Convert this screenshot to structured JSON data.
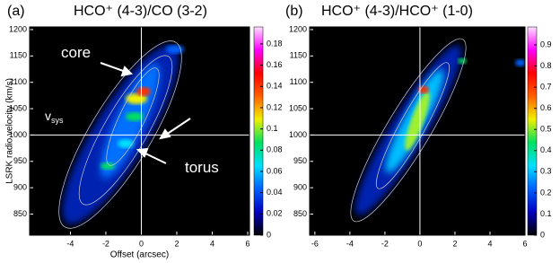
{
  "chart_data": [
    {
      "type": "heatmap",
      "panel_label": "(a)",
      "title": "HCO⁺ (4-3)/CO (3-2)",
      "xlabel": "Offset (arcsec)",
      "ylabel": "LSRK radio velocity (km/s)",
      "xlim": [
        -6.3,
        6.1
      ],
      "ylim": [
        810,
        1205
      ],
      "xticks": [
        -4,
        -2,
        0,
        2,
        4,
        6
      ],
      "yticks": [
        850,
        900,
        950,
        1000,
        1050,
        1100,
        1150,
        1200
      ],
      "clim": [
        0,
        0.196
      ],
      "cticks": [
        0,
        0.02,
        0.04,
        0.06,
        0.08,
        0.1,
        0.12,
        0.14,
        0.16,
        0.18
      ],
      "colormap": [
        "#000000",
        "#0000c0",
        "#0060ff",
        "#00e0ff",
        "#00e060",
        "#f0f000",
        "#ff6000",
        "#ff0000",
        "#ff00ff",
        "#ffe0ff"
      ],
      "reference_lines": {
        "x": 0,
        "y": 1000
      },
      "annotations": [
        {
          "text": "core"
        },
        {
          "text": "torus"
        },
        {
          "text": "v",
          "subscript": "sys"
        }
      ]
    },
    {
      "type": "heatmap",
      "panel_label": "(b)",
      "title": "HCO⁺ (4-3)/HCO⁺ (1-0)",
      "xlim": [
        -6.3,
        6.0
      ],
      "ylim": [
        810,
        1205
      ],
      "xticks": [
        -6,
        -4,
        -2,
        0,
        2,
        4,
        6
      ],
      "yticks": [
        850,
        900,
        950,
        1000,
        1050,
        1100,
        1150,
        1200
      ],
      "clim": [
        0,
        0.985
      ],
      "cticks": [
        0,
        0.1,
        0.2,
        0.3,
        0.4,
        0.5,
        0.6,
        0.7,
        0.8,
        0.9
      ],
      "colormap": [
        "#000000",
        "#0000c0",
        "#0060ff",
        "#00e0ff",
        "#00e060",
        "#f0f000",
        "#ff6000",
        "#ff0000",
        "#ff00ff",
        "#ffe0ff"
      ],
      "reference_lines": {
        "x": 0,
        "y": 1000
      }
    }
  ]
}
